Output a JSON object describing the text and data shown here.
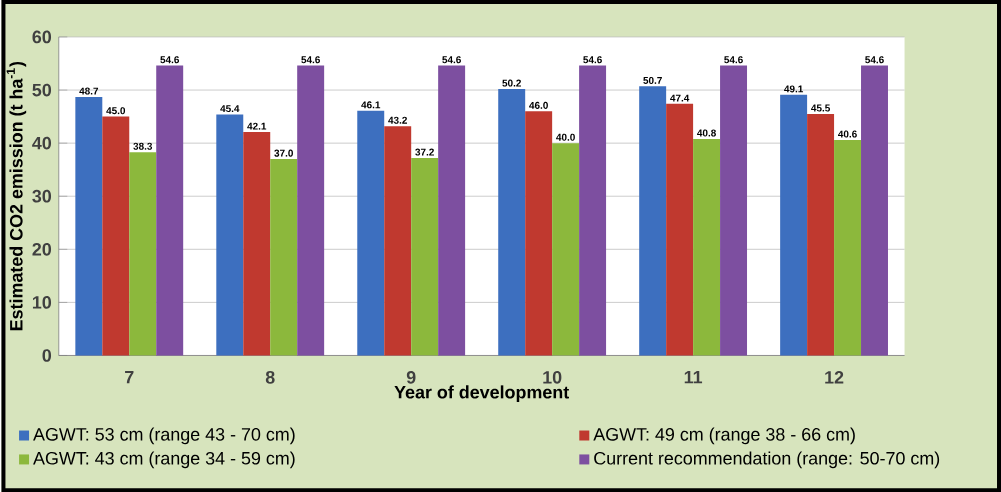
{
  "chart_data": {
    "type": "bar",
    "xlabel": "Year of development",
    "ylabel": "Estimated CO2 emission (t ha$^{-1}$)",
    "categories": [
      "7",
      "8",
      "9",
      "10",
      "11",
      "12"
    ],
    "series": [
      {
        "name": "AGWT: 53 cm (range 43 - 70 cm)",
        "color": "#3d6fbf",
        "values": [
          48.7,
          45.4,
          46.1,
          50.2,
          50.7,
          49.1
        ],
        "value_labels": [
          "48.7",
          "45.4",
          "46.1",
          "50.2",
          "50.7",
          "49.1"
        ]
      },
      {
        "name": "AGWT: 49 cm (range 38 - 66 cm)",
        "color": "#c0392f",
        "values": [
          45.0,
          42.1,
          43.2,
          46.0,
          47.4,
          45.5
        ],
        "value_labels": [
          "45.0",
          "42.1",
          "43.2",
          "46.0",
          "47.4",
          "45.5"
        ]
      },
      {
        "name": "AGWT: 43 cm (range 34 - 59 cm)",
        "color": "#8cb83c",
        "values": [
          38.3,
          37.0,
          37.2,
          40.0,
          40.8,
          40.6
        ],
        "value_labels": [
          "38.3",
          "37.0",
          "37.2",
          "40.0",
          "40.8",
          "40.6"
        ]
      },
      {
        "name": "Current recommendation (range: 50-70 cm)",
        "color": "#7d4fa0",
        "values": [
          54.6,
          54.6,
          54.6,
          54.6,
          54.6,
          54.6
        ],
        "value_labels": [
          "54.6",
          "54.6",
          "54.6",
          "54.6",
          "54.6",
          "54.6"
        ]
      }
    ],
    "ylim": [
      0,
      60
    ],
    "yticks": [
      0,
      10,
      20,
      30,
      40,
      50,
      60
    ],
    "grid": "y",
    "legend": "bottom"
  }
}
